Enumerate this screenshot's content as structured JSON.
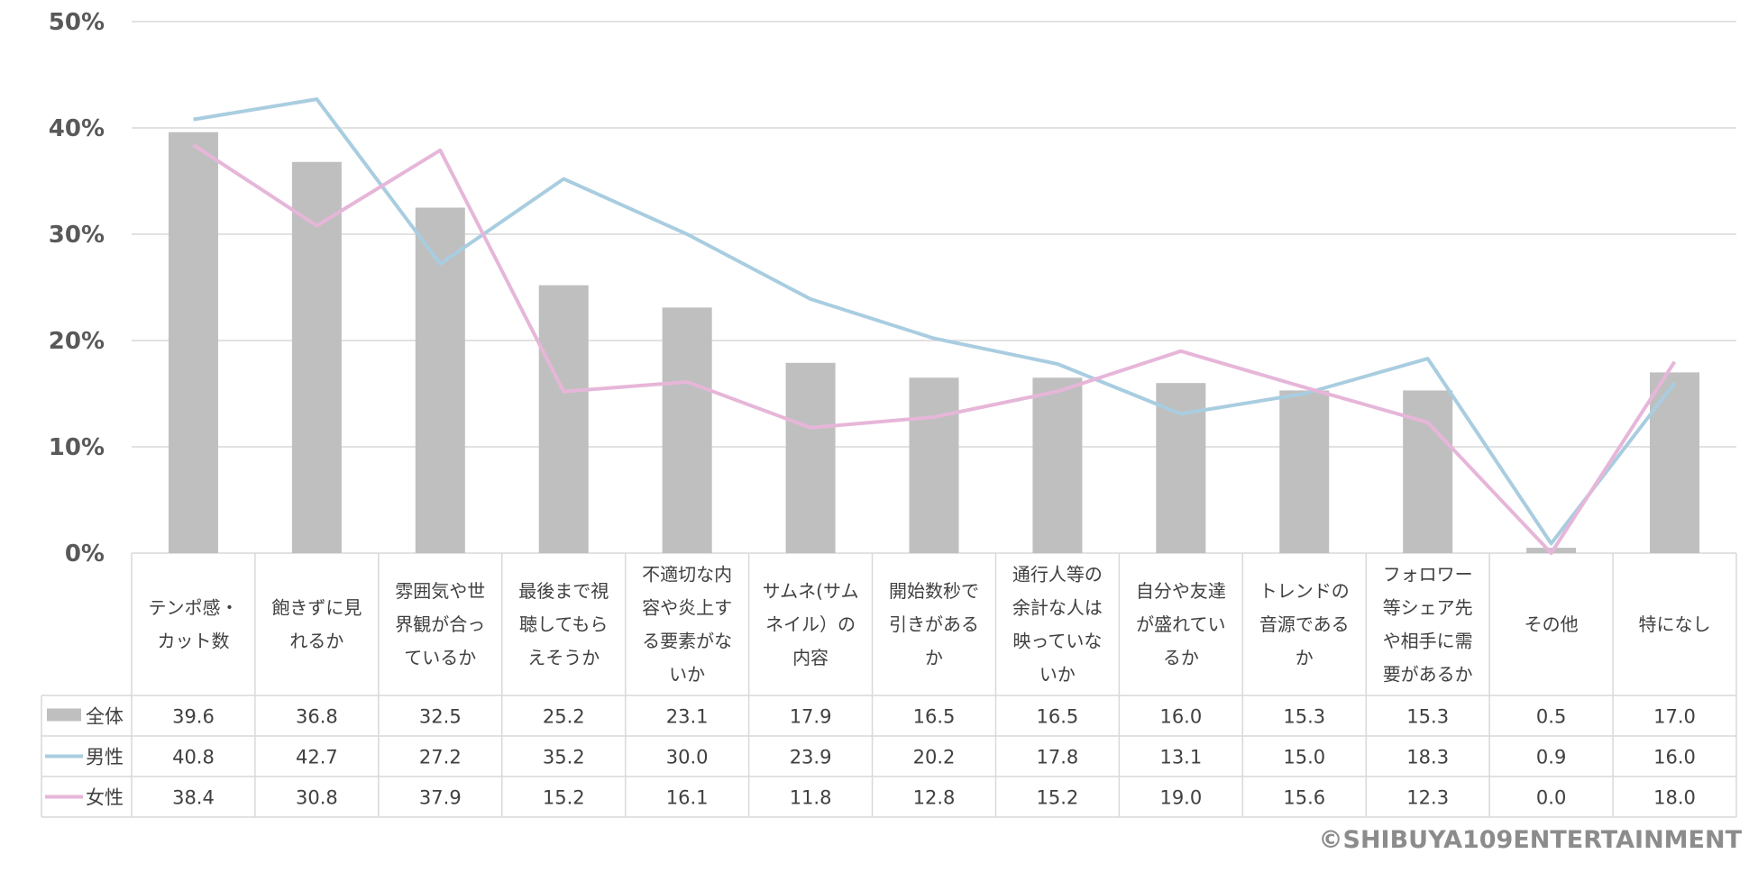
{
  "chart_data": {
    "type": "bar",
    "categories": [
      [
        "テンポ感・",
        "カット数"
      ],
      [
        "飽きずに見",
        "れるか"
      ],
      [
        "雰囲気や世",
        "界観が合っ",
        "ているか"
      ],
      [
        "最後まで視",
        "聴してもら",
        "えそうか"
      ],
      [
        "不適切な内",
        "容や炎上す",
        "る要素がな",
        "いか"
      ],
      [
        "サムネ(サム",
        "ネイル）の",
        "内容"
      ],
      [
        "開始数秒で",
        "引きがある",
        "か"
      ],
      [
        "通行人等の",
        "余計な人は",
        "映っていな",
        "いか"
      ],
      [
        "自分や友達",
        "が盛れてい",
        "るか"
      ],
      [
        "トレンドの",
        "音源である",
        "か"
      ],
      [
        "フォロワー",
        "等シェア先",
        "や相手に需",
        "要があるか"
      ],
      [
        "その他"
      ],
      [
        "特になし"
      ]
    ],
    "series": [
      {
        "name": "全体",
        "type": "bar",
        "color": "#bfbfbf",
        "values": [
          39.6,
          36.8,
          32.5,
          25.2,
          23.1,
          17.9,
          16.5,
          16.5,
          16.0,
          15.3,
          15.3,
          0.5,
          17.0
        ],
        "labels": [
          "39.6",
          "36.8",
          "32.5",
          "25.2",
          "23.1",
          "17.9",
          "16.5",
          "16.5",
          "16.0",
          "15.3",
          "15.3",
          "0.5",
          "17.0"
        ]
      },
      {
        "name": "男性",
        "type": "line",
        "color": "#a9cde0",
        "values": [
          40.8,
          42.7,
          27.2,
          35.2,
          30.0,
          23.9,
          20.2,
          17.8,
          13.1,
          15.0,
          18.3,
          0.9,
          16.0
        ],
        "labels": [
          "40.8",
          "42.7",
          "27.2",
          "35.2",
          "30.0",
          "23.9",
          "20.2",
          "17.8",
          "13.1",
          "15.0",
          "18.3",
          "0.9",
          "16.0"
        ]
      },
      {
        "name": "女性",
        "type": "line",
        "color": "#e6b6d9",
        "values": [
          38.4,
          30.8,
          37.9,
          15.2,
          16.1,
          11.8,
          12.8,
          15.2,
          19.0,
          15.6,
          12.3,
          0.0,
          18.0
        ],
        "labels": [
          "38.4",
          "30.8",
          "37.9",
          "15.2",
          "16.1",
          "11.8",
          "12.8",
          "15.2",
          "19.0",
          "15.6",
          "12.3",
          "0.0",
          "18.0"
        ]
      }
    ],
    "ylim": [
      0,
      50
    ],
    "yticks": [
      "0%",
      "10%",
      "20%",
      "30%",
      "40%",
      "50%"
    ],
    "grid": true,
    "legend": "data-table-left"
  },
  "credit": "©SHIBUYA109ENTERTAINMENT"
}
